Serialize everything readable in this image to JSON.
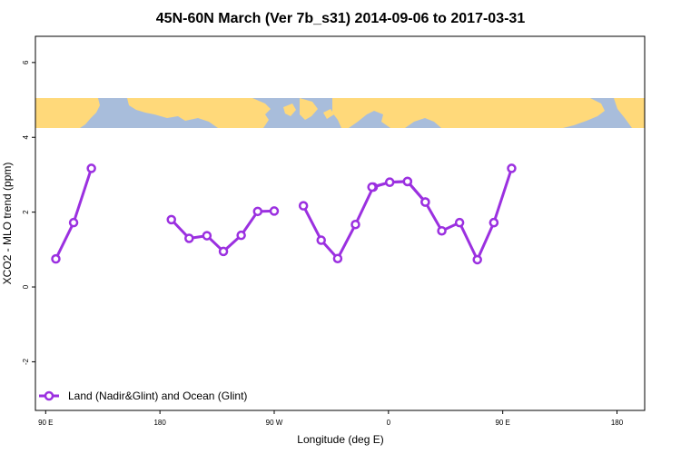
{
  "chart_data": {
    "type": "line",
    "title": "45N-60N March (Ver 7b_s31)   2014-09-06 to 2017-03-31",
    "xlabel": "Longitude (deg E)",
    "ylabel": "XCO2 - MLO trend (ppm)",
    "xlim": [
      90,
      450
    ],
    "ylim": [
      -3.3,
      6.7
    ],
    "x_ticks": [
      90,
      180,
      270,
      360,
      450,
      540
    ],
    "x_tick_labels": [
      "90 E",
      "180",
      "90 W",
      "0",
      "90 E",
      "180"
    ],
    "y_ticks": [
      -2,
      0,
      2,
      4,
      6
    ],
    "y_tick_labels": [
      "-2",
      "0",
      "2",
      "4",
      "6"
    ],
    "map_band": {
      "y_range": [
        4.2,
        5.0
      ],
      "ocean_color": "#a8bddb",
      "land_color": "#ffd97a"
    },
    "legend": {
      "position": "bottom-left"
    },
    "series": [
      {
        "name": "Land (Nadir&Glint) and Ocean (Glint)",
        "color": "#9b30e0",
        "segments": [
          {
            "x": [
              98,
              112,
              126
            ],
            "y": [
              0.75,
              1.72,
              3.17
            ]
          },
          {
            "x": [
              189,
              203,
              217,
              230,
              244,
              257,
              270
            ],
            "y": [
              1.8,
              1.3,
              1.37,
              0.95,
              1.38,
              2.02,
              2.03
            ]
          },
          {
            "x": [
              293,
              307,
              320,
              334,
              348,
              361,
              375,
              389,
              402,
              416,
              430,
              443
            ],
            "y": [
              2.17,
              1.25,
              0.76,
              1.67,
              2.67,
              2.8,
              2.82,
              2.27,
              1.5,
              1.72,
              0.73,
              1.72
            ]
          },
          {
            "x": [
              347,
              361,
              375,
              389
            ],
            "y": [
              2.67,
              2.8,
              2.82,
              2.27
            ]
          },
          {
            "x": [
              443,
              457
            ],
            "y": [
              1.72,
              3.17
            ]
          }
        ]
      }
    ]
  }
}
